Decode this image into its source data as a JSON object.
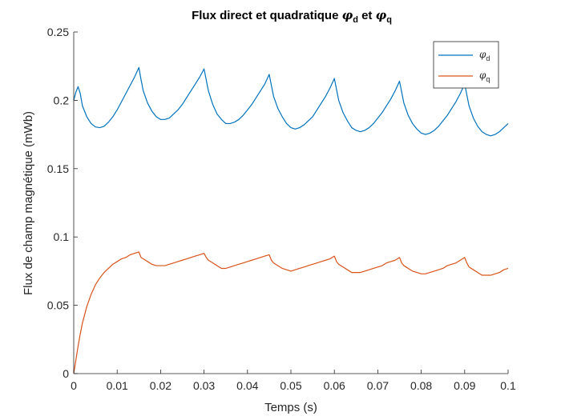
{
  "chart_data": {
    "type": "line",
    "title": {
      "prefix": "Flux direct et quadratique ",
      "sym1": "φ",
      "sub1": "d",
      "mid": " et ",
      "sym2": "φ",
      "sub2": "q"
    },
    "xlabel": "Temps (s)",
    "ylabel": "Flux de champ magnétique (mWb)",
    "xlim": [
      0,
      0.1
    ],
    "ylim": [
      0,
      0.25
    ],
    "xticks": [
      0,
      0.01,
      0.02,
      0.03,
      0.04,
      0.05,
      0.06,
      0.07,
      0.08,
      0.09,
      0.1
    ],
    "xtick_labels": [
      "0",
      "0.01",
      "0.02",
      "0.03",
      "0.04",
      "0.05",
      "0.06",
      "0.07",
      "0.08",
      "0.09",
      "0.1"
    ],
    "yticks": [
      0,
      0.05,
      0.1,
      0.15,
      0.2,
      0.25
    ],
    "ytick_labels": [
      "0",
      "0.05",
      "0.1",
      "0.15",
      "0.2",
      "0.25"
    ],
    "grid": false,
    "legend_position": "top-right",
    "series": [
      {
        "name": "φd",
        "legend_symbol": "φ",
        "legend_sub": "d",
        "color": "#0072BD",
        "points": [
          [
            0,
            0.2
          ],
          [
            0.0005,
            0.206
          ],
          [
            0.001,
            0.21
          ],
          [
            0.0015,
            0.205
          ],
          [
            0.002,
            0.196
          ],
          [
            0.003,
            0.188
          ],
          [
            0.004,
            0.183
          ],
          [
            0.005,
            0.1805
          ],
          [
            0.006,
            0.18
          ],
          [
            0.007,
            0.181
          ],
          [
            0.008,
            0.184
          ],
          [
            0.009,
            0.188
          ],
          [
            0.01,
            0.193
          ],
          [
            0.011,
            0.199
          ],
          [
            0.012,
            0.205
          ],
          [
            0.013,
            0.211
          ],
          [
            0.014,
            0.217
          ],
          [
            0.015,
            0.224
          ],
          [
            0.0155,
            0.215
          ],
          [
            0.016,
            0.207
          ],
          [
            0.017,
            0.198
          ],
          [
            0.018,
            0.192
          ],
          [
            0.019,
            0.188
          ],
          [
            0.02,
            0.186
          ],
          [
            0.021,
            0.186
          ],
          [
            0.022,
            0.187
          ],
          [
            0.023,
            0.19
          ],
          [
            0.024,
            0.193
          ],
          [
            0.025,
            0.197
          ],
          [
            0.026,
            0.202
          ],
          [
            0.027,
            0.207
          ],
          [
            0.028,
            0.212
          ],
          [
            0.029,
            0.217
          ],
          [
            0.03,
            0.223
          ],
          [
            0.0305,
            0.215
          ],
          [
            0.031,
            0.207
          ],
          [
            0.032,
            0.197
          ],
          [
            0.033,
            0.19
          ],
          [
            0.034,
            0.186
          ],
          [
            0.035,
            0.183
          ],
          [
            0.036,
            0.183
          ],
          [
            0.037,
            0.184
          ],
          [
            0.038,
            0.186
          ],
          [
            0.039,
            0.189
          ],
          [
            0.04,
            0.193
          ],
          [
            0.041,
            0.197
          ],
          [
            0.042,
            0.202
          ],
          [
            0.043,
            0.207
          ],
          [
            0.044,
            0.212
          ],
          [
            0.045,
            0.219
          ],
          [
            0.0455,
            0.211
          ],
          [
            0.046,
            0.203
          ],
          [
            0.047,
            0.194
          ],
          [
            0.048,
            0.188
          ],
          [
            0.049,
            0.183
          ],
          [
            0.05,
            0.18
          ],
          [
            0.051,
            0.179
          ],
          [
            0.052,
            0.18
          ],
          [
            0.053,
            0.182
          ],
          [
            0.054,
            0.185
          ],
          [
            0.055,
            0.188
          ],
          [
            0.056,
            0.193
          ],
          [
            0.057,
            0.198
          ],
          [
            0.058,
            0.203
          ],
          [
            0.059,
            0.209
          ],
          [
            0.06,
            0.216
          ],
          [
            0.0605,
            0.208
          ],
          [
            0.061,
            0.2
          ],
          [
            0.062,
            0.191
          ],
          [
            0.063,
            0.185
          ],
          [
            0.064,
            0.18
          ],
          [
            0.065,
            0.178
          ],
          [
            0.066,
            0.177
          ],
          [
            0.067,
            0.178
          ],
          [
            0.068,
            0.18
          ],
          [
            0.069,
            0.183
          ],
          [
            0.07,
            0.187
          ],
          [
            0.071,
            0.191
          ],
          [
            0.072,
            0.196
          ],
          [
            0.073,
            0.201
          ],
          [
            0.074,
            0.207
          ],
          [
            0.075,
            0.214
          ],
          [
            0.0755,
            0.206
          ],
          [
            0.076,
            0.198
          ],
          [
            0.077,
            0.189
          ],
          [
            0.078,
            0.183
          ],
          [
            0.079,
            0.179
          ],
          [
            0.08,
            0.176
          ],
          [
            0.081,
            0.175
          ],
          [
            0.082,
            0.176
          ],
          [
            0.083,
            0.178
          ],
          [
            0.084,
            0.181
          ],
          [
            0.085,
            0.185
          ],
          [
            0.086,
            0.189
          ],
          [
            0.087,
            0.194
          ],
          [
            0.088,
            0.199
          ],
          [
            0.089,
            0.205
          ],
          [
            0.09,
            0.212
          ],
          [
            0.0905,
            0.204
          ],
          [
            0.091,
            0.196
          ],
          [
            0.092,
            0.187
          ],
          [
            0.093,
            0.181
          ],
          [
            0.094,
            0.177
          ],
          [
            0.095,
            0.175
          ],
          [
            0.096,
            0.174
          ],
          [
            0.097,
            0.175
          ],
          [
            0.098,
            0.177
          ],
          [
            0.099,
            0.18
          ],
          [
            0.1,
            0.183
          ]
        ]
      },
      {
        "name": "φq",
        "legend_symbol": "φ",
        "legend_sub": "q",
        "color": "#D95319",
        "points": [
          [
            0,
            0.0
          ],
          [
            0.0005,
            0.01
          ],
          [
            0.001,
            0.02
          ],
          [
            0.0015,
            0.029
          ],
          [
            0.002,
            0.037
          ],
          [
            0.003,
            0.049
          ],
          [
            0.004,
            0.058
          ],
          [
            0.005,
            0.065
          ],
          [
            0.006,
            0.07
          ],
          [
            0.007,
            0.074
          ],
          [
            0.008,
            0.077
          ],
          [
            0.009,
            0.08
          ],
          [
            0.01,
            0.082
          ],
          [
            0.011,
            0.084
          ],
          [
            0.012,
            0.085
          ],
          [
            0.013,
            0.087
          ],
          [
            0.014,
            0.088
          ],
          [
            0.015,
            0.089
          ],
          [
            0.0155,
            0.085
          ],
          [
            0.016,
            0.084
          ],
          [
            0.017,
            0.082
          ],
          [
            0.018,
            0.08
          ],
          [
            0.019,
            0.079
          ],
          [
            0.02,
            0.079
          ],
          [
            0.021,
            0.079
          ],
          [
            0.022,
            0.08
          ],
          [
            0.023,
            0.081
          ],
          [
            0.024,
            0.082
          ],
          [
            0.025,
            0.083
          ],
          [
            0.026,
            0.084
          ],
          [
            0.027,
            0.085
          ],
          [
            0.028,
            0.086
          ],
          [
            0.029,
            0.087
          ],
          [
            0.03,
            0.088
          ],
          [
            0.0305,
            0.085
          ],
          [
            0.031,
            0.083
          ],
          [
            0.032,
            0.081
          ],
          [
            0.033,
            0.079
          ],
          [
            0.034,
            0.077
          ],
          [
            0.035,
            0.077
          ],
          [
            0.036,
            0.078
          ],
          [
            0.037,
            0.079
          ],
          [
            0.038,
            0.08
          ],
          [
            0.039,
            0.081
          ],
          [
            0.04,
            0.082
          ],
          [
            0.041,
            0.083
          ],
          [
            0.042,
            0.084
          ],
          [
            0.043,
            0.085
          ],
          [
            0.044,
            0.086
          ],
          [
            0.045,
            0.087
          ],
          [
            0.0455,
            0.083
          ],
          [
            0.046,
            0.081
          ],
          [
            0.047,
            0.079
          ],
          [
            0.048,
            0.077
          ],
          [
            0.049,
            0.076
          ],
          [
            0.05,
            0.075
          ],
          [
            0.051,
            0.076
          ],
          [
            0.052,
            0.077
          ],
          [
            0.053,
            0.078
          ],
          [
            0.054,
            0.079
          ],
          [
            0.055,
            0.08
          ],
          [
            0.056,
            0.081
          ],
          [
            0.057,
            0.082
          ],
          [
            0.058,
            0.083
          ],
          [
            0.059,
            0.084
          ],
          [
            0.06,
            0.086
          ],
          [
            0.0605,
            0.082
          ],
          [
            0.061,
            0.08
          ],
          [
            0.062,
            0.078
          ],
          [
            0.063,
            0.076
          ],
          [
            0.064,
            0.074
          ],
          [
            0.065,
            0.074
          ],
          [
            0.066,
            0.074
          ],
          [
            0.067,
            0.075
          ],
          [
            0.068,
            0.076
          ],
          [
            0.069,
            0.077
          ],
          [
            0.07,
            0.078
          ],
          [
            0.071,
            0.079
          ],
          [
            0.072,
            0.081
          ],
          [
            0.073,
            0.082
          ],
          [
            0.074,
            0.083
          ],
          [
            0.075,
            0.085
          ],
          [
            0.0755,
            0.081
          ],
          [
            0.076,
            0.079
          ],
          [
            0.077,
            0.077
          ],
          [
            0.078,
            0.075
          ],
          [
            0.079,
            0.074
          ],
          [
            0.08,
            0.073
          ],
          [
            0.081,
            0.073
          ],
          [
            0.082,
            0.074
          ],
          [
            0.083,
            0.075
          ],
          [
            0.084,
            0.076
          ],
          [
            0.085,
            0.077
          ],
          [
            0.086,
            0.079
          ],
          [
            0.087,
            0.08
          ],
          [
            0.088,
            0.081
          ],
          [
            0.089,
            0.083
          ],
          [
            0.09,
            0.085
          ],
          [
            0.0905,
            0.081
          ],
          [
            0.091,
            0.078
          ],
          [
            0.092,
            0.076
          ],
          [
            0.093,
            0.074
          ],
          [
            0.094,
            0.072
          ],
          [
            0.095,
            0.072
          ],
          [
            0.096,
            0.072
          ],
          [
            0.097,
            0.073
          ],
          [
            0.098,
            0.074
          ],
          [
            0.099,
            0.076
          ],
          [
            0.1,
            0.077
          ]
        ]
      }
    ]
  }
}
